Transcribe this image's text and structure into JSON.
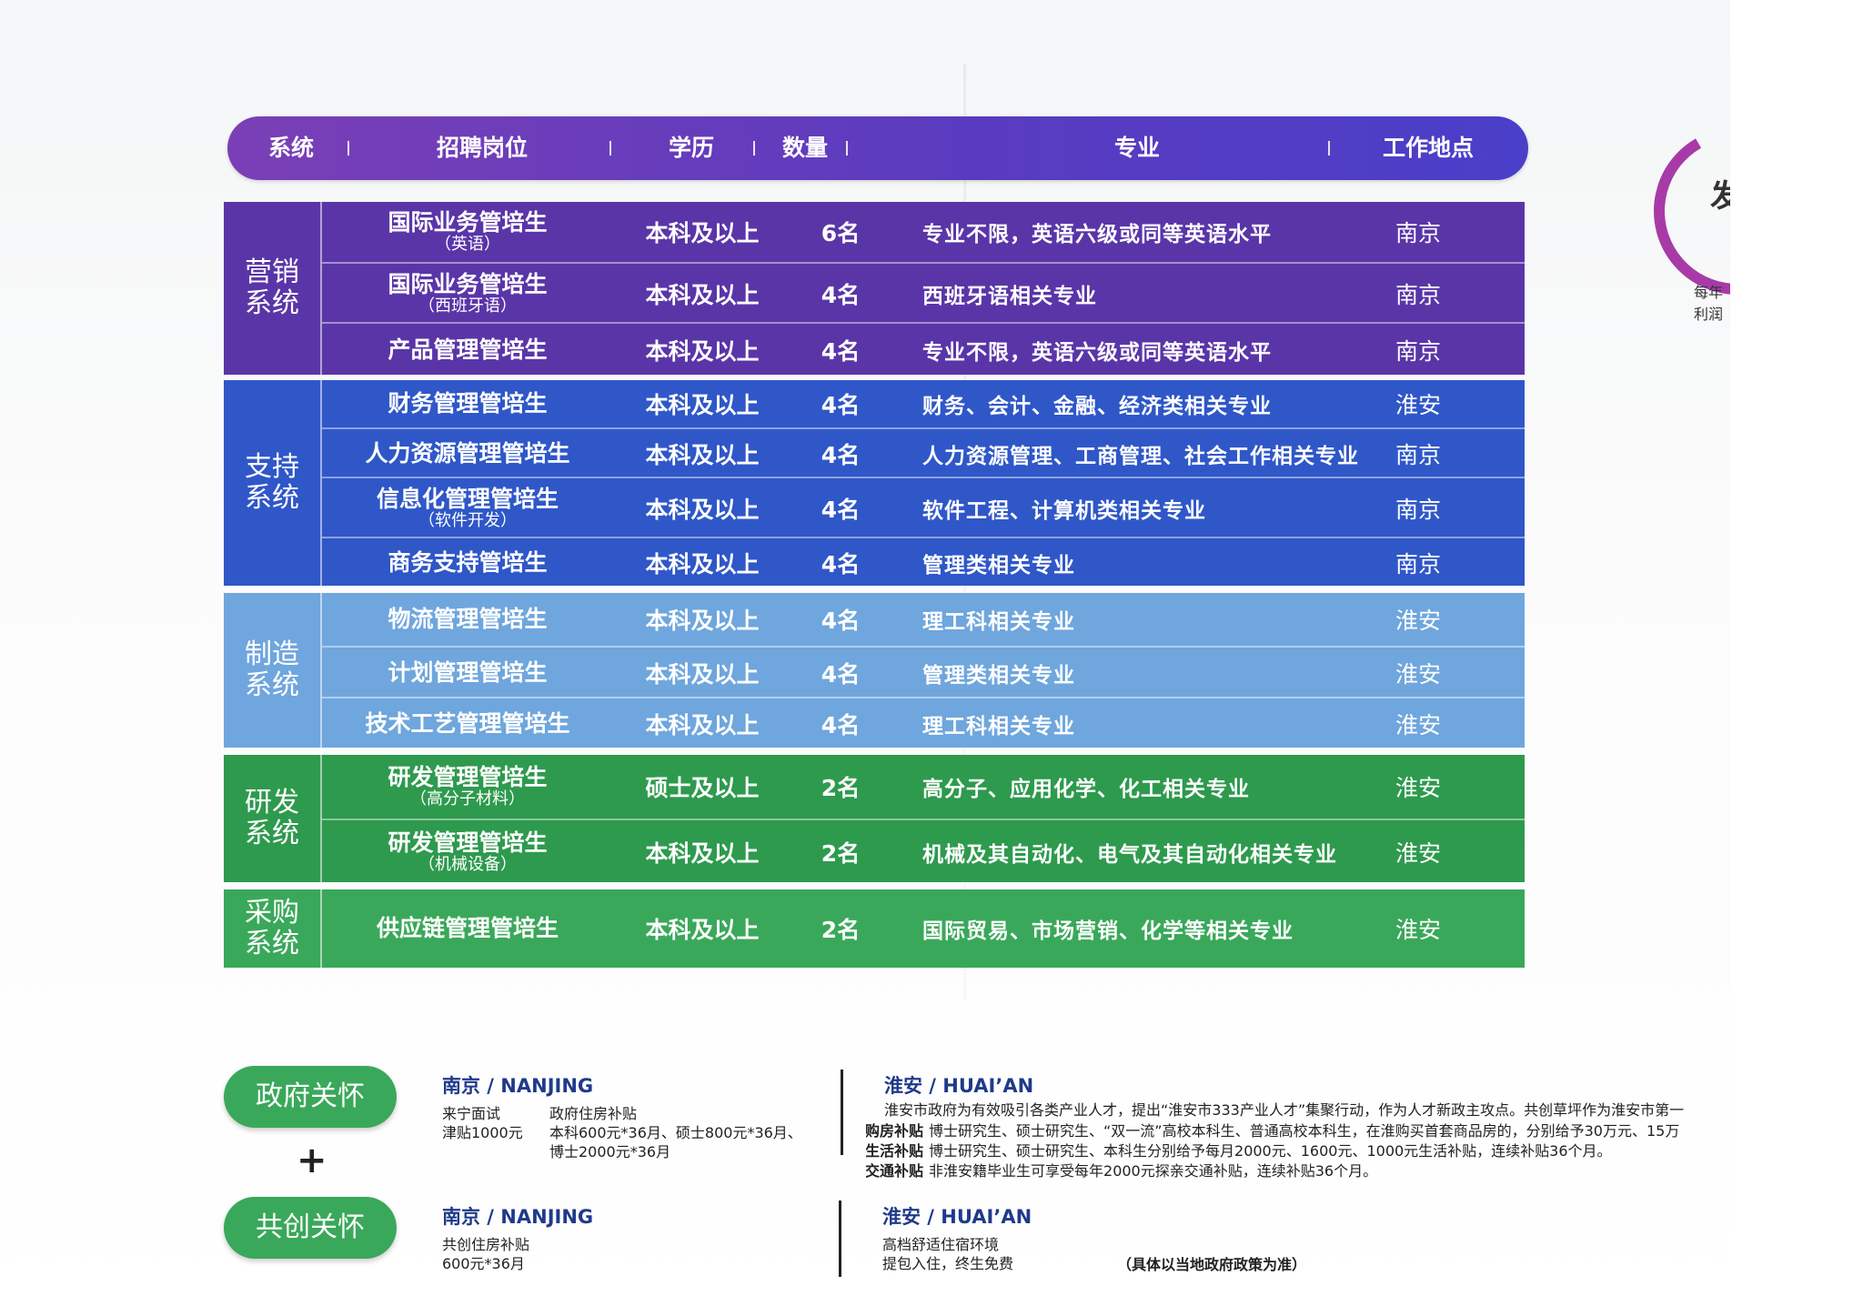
{
  "header": {
    "system": "系统",
    "position": "招聘岗位",
    "education": "学历",
    "count": "数量",
    "major": "专业",
    "location": "工作地点",
    "color": "#5b3bbf"
  },
  "groups": [
    {
      "system": "营销\n系统",
      "color": "#5a35a8",
      "rows": [
        {
          "position": "国际业务管培生",
          "sub": "（英语）",
          "education": "本科及以上",
          "count": "6名",
          "major": "专业不限，英语六级或同等英语水平",
          "location": "南京"
        },
        {
          "position": "国际业务管培生",
          "sub": "（西班牙语）",
          "education": "本科及以上",
          "count": "4名",
          "major": "西班牙语相关专业",
          "location": "南京"
        },
        {
          "position": "产品管理管培生",
          "sub": "",
          "education": "本科及以上",
          "count": "4名",
          "major": "专业不限，英语六级或同等英语水平",
          "location": "南京"
        }
      ]
    },
    {
      "system": "支持\n系统",
      "color": "#2f57c8",
      "rows": [
        {
          "position": "财务管理管培生",
          "sub": "",
          "education": "本科及以上",
          "count": "4名",
          "major": "财务、会计、金融、经济类相关专业",
          "location": "淮安"
        },
        {
          "position": "人力资源管理管培生",
          "sub": "",
          "education": "本科及以上",
          "count": "4名",
          "major": "人力资源管理、工商管理、社会工作相关专业",
          "location": "南京"
        },
        {
          "position": "信息化管理管培生",
          "sub": "（软件开发）",
          "education": "本科及以上",
          "count": "4名",
          "major": "软件工程、计算机类相关专业",
          "location": "南京"
        },
        {
          "position": "商务支持管培生",
          "sub": "",
          "education": "本科及以上",
          "count": "4名",
          "major": "管理类相关专业",
          "location": "南京"
        }
      ]
    },
    {
      "system": "制造\n系统",
      "color": "#6fa6dd",
      "rows": [
        {
          "position": "物流管理管培生",
          "sub": "",
          "education": "本科及以上",
          "count": "4名",
          "major": "理工科相关专业",
          "location": "淮安"
        },
        {
          "position": "计划管理管培生",
          "sub": "",
          "education": "本科及以上",
          "count": "4名",
          "major": "管理类相关专业",
          "location": "淮安"
        },
        {
          "position": "技术工艺管理管培生",
          "sub": "",
          "education": "本科及以上",
          "count": "4名",
          "major": "理工科相关专业",
          "location": "淮安"
        }
      ]
    },
    {
      "system": "研发\n系统",
      "color": "#2e9a4e",
      "rows": [
        {
          "position": "研发管理管培生",
          "sub": "（高分子材料）",
          "education": "硕士及以上",
          "count": "2名",
          "major": "高分子、应用化学、化工相关专业",
          "location": "淮安"
        },
        {
          "position": "研发管理管培生",
          "sub": "（机械设备）",
          "education": "本科及以上",
          "count": "2名",
          "major": "机械及其自动化、电气及其自动化相关专业",
          "location": "淮安"
        }
      ]
    },
    {
      "system": "采购\n系统",
      "color": "#3aa85a",
      "rows": [
        {
          "position": "供应链管理管培生",
          "sub": "",
          "education": "本科及以上",
          "count": "2名",
          "major": "国际贸易、市场营销、化学等相关专业",
          "location": "淮安"
        }
      ]
    }
  ],
  "side": {
    "char": "发",
    "note": "每年\n利润"
  },
  "policy": {
    "gov_pill": "政府关怀",
    "plus": "+",
    "co_pill": "共创关怀",
    "gov_nanjing_title": "南京 / NANJING",
    "gov_nanjing_col1": "来宁面试\n津贴1000元",
    "gov_nanjing_col2": "政府住房补贴\n本科600元*36月、硕士800元*36月、\n博士2000元*36月",
    "gov_huaian_title": "淮安 / HUAI’AN",
    "gov_huaian_intro": "淮安市政府为有效吸引各类产业人才，提出“淮安市333产业人才”集聚行动，作为人才新政主攻点。共创草坪作为淮安市第一",
    "gov_huaian_items": [
      {
        "label": "购房补贴",
        "text": "博士研究生、硕士研究生、“双一流”高校本科生、普通高校本科生，在淮购买首套商品房的，分别给予30万元、15万"
      },
      {
        "label": "生活补贴",
        "text": "博士研究生、硕士研究生、本科生分别给予每月2000元、1600元、1000元生活补贴，连续补贴36个月。"
      },
      {
        "label": "交通补贴",
        "text": "非淮安籍毕业生可享受每年2000元探亲交通补贴，连续补贴36个月。"
      }
    ],
    "co_nanjing_title": "南京 / NANJING",
    "co_nanjing_text": "共创住房补贴\n600元*36月",
    "co_huaian_title": "淮安 / HUAI’AN",
    "co_huaian_text": "高档舒适住宿环境\n提包入住，终生免费",
    "co_huaian_note": "（具体以当地政府政策为准）"
  }
}
